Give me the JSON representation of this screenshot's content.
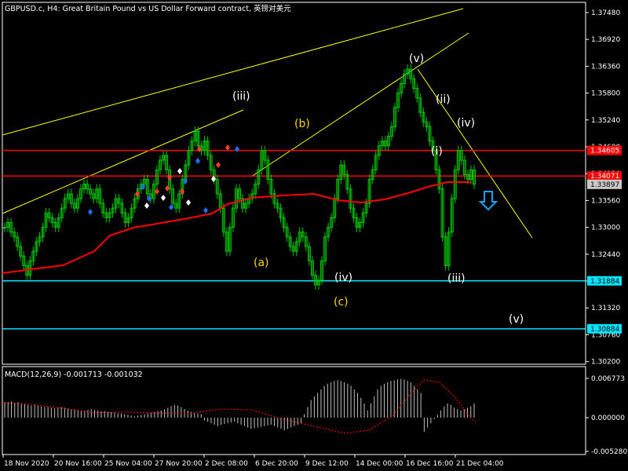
{
  "window": {
    "title": "GBPUSD.c, H4:  Great Britain Pound vs US Dollar Forward contract, 英镑对美元",
    "macd_title": "MACD(12,26,9) -0.001713 -0.001032"
  },
  "colors": {
    "background": "#000000",
    "axis": "#ffffff",
    "bull_candle": "#00c800",
    "trend_line": "#ffff00",
    "ma_line": "#ff0000",
    "resistance_line": "#ff0000",
    "support_line": "#00e5ff",
    "macd_histogram": "#c0c0c0",
    "macd_signal": "#ff0000",
    "wave_white": "#ffffff",
    "wave_yellow": "#ffd200",
    "arrow": "#1ea0ff"
  },
  "price_axis": {
    "ticks": [
      "1.37480",
      "1.36920",
      "1.36360",
      "1.35800",
      "1.35240",
      "1.34680",
      "1.34120",
      "1.33560",
      "1.33000",
      "1.32440",
      "1.31880",
      "1.31320",
      "1.30760",
      "1.30200"
    ],
    "highlighted": [
      {
        "label": "1.34605",
        "value": 1.34605,
        "color": "#ff0000",
        "text_color": "#ffffff"
      },
      {
        "label": "1.34071",
        "value": 1.34071,
        "color": "#ff0000",
        "text_color": "#ffffff"
      },
      {
        "label": "1.33897",
        "value": 1.33897,
        "color": "#c8c8c8",
        "text_color": "#000000"
      },
      {
        "label": "1.31884",
        "value": 1.31884,
        "color": "#00e5ff",
        "text_color": "#000000"
      },
      {
        "label": "1.30884",
        "value": 1.30884,
        "color": "#00e5ff",
        "text_color": "#000000"
      }
    ]
  },
  "macd_axis": {
    "ticks": [
      "0.006773",
      "0.000000",
      "-0.005280"
    ]
  },
  "time_axis": {
    "ticks": [
      "18 Nov 2020",
      "20 Nov 16:00",
      "25 Nov 04:00",
      "27 Nov 20:00",
      "2 Dec 08:00",
      "6 Dec 20:00",
      "9 Dec 12:00",
      "14 Dec 00:00",
      "16 Dec 16:00",
      "21 Dec 04:00"
    ]
  },
  "horizontal_levels": [
    {
      "name": "resistance-upper",
      "value": 1.34605,
      "color": "#ff0000"
    },
    {
      "name": "resistance-lower",
      "value": 1.34071,
      "color": "#ff0000"
    },
    {
      "name": "support-upper",
      "value": 1.31884,
      "color": "#00e5ff"
    },
    {
      "name": "support-lower",
      "value": 1.30884,
      "color": "#00e5ff"
    }
  ],
  "wave_labels": [
    {
      "text": "(iii)",
      "color": "#ffffff"
    },
    {
      "text": "(b)",
      "color": "#ffd200"
    },
    {
      "text": "(v)",
      "color": "#ffffff"
    },
    {
      "text": "(ii)",
      "color": "#ffffff"
    },
    {
      "text": "(iv)",
      "color": "#ffffff"
    },
    {
      "text": "(i)",
      "color": "#ffffff"
    },
    {
      "text": "(a)",
      "color": "#ffd200"
    },
    {
      "text": "(iv)",
      "color": "#ffffff"
    },
    {
      "text": "(c)",
      "color": "#ffd200"
    },
    {
      "text": "(iii)",
      "color": "#ffffff"
    },
    {
      "text": "(v)",
      "color": "#ffffff"
    }
  ],
  "arrow": {
    "direction": "down",
    "icon": "down-arrow-icon"
  }
}
